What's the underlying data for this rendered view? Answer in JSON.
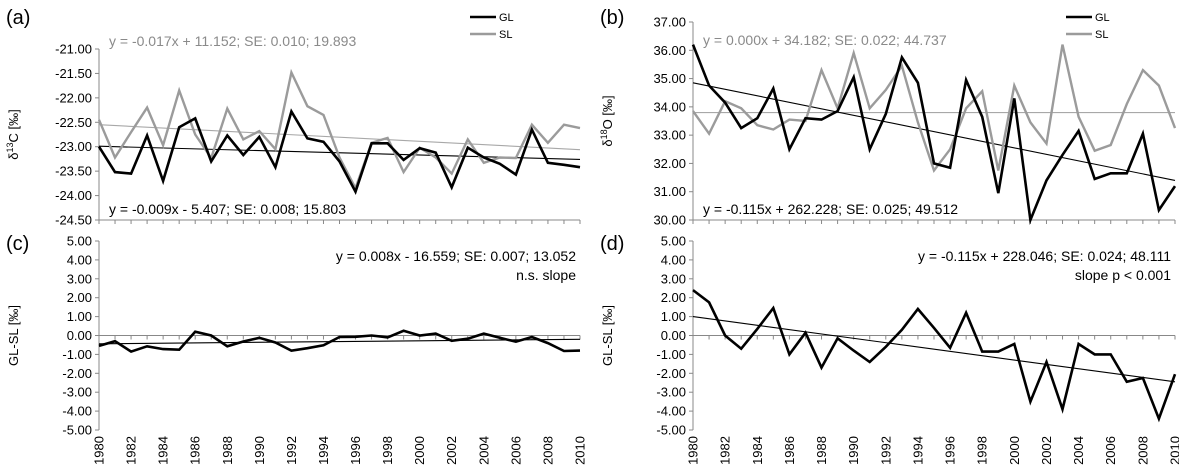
{
  "chart_data": [
    {
      "id": "a",
      "type": "line",
      "panel_label": "(a)",
      "ylabel_base": "δ",
      "ylabel_sup": "13",
      "ylabel_rest": "C [‰]",
      "ylim": [
        -24.5,
        -21.0
      ],
      "yticks": [
        "-21.00",
        "-21.50",
        "-22.00",
        "-22.50",
        "-23.00",
        "-23.50",
        "-24.00",
        "-24.50"
      ],
      "ytick_values": [
        -21.0,
        -21.5,
        -22.0,
        -22.5,
        -23.0,
        -23.5,
        -24.0,
        -24.5
      ],
      "x": [
        1980,
        1981,
        1982,
        1983,
        1984,
        1985,
        1986,
        1987,
        1988,
        1989,
        1990,
        1991,
        1992,
        1993,
        1994,
        1995,
        1996,
        1997,
        1998,
        1999,
        2000,
        2001,
        2002,
        2003,
        2004,
        2005,
        2006,
        2007,
        2008,
        2009,
        2010
      ],
      "xlim": [
        1980,
        2010
      ],
      "xticks": [
        "1980",
        "1982",
        "1984",
        "1986",
        "1988",
        "1990",
        "1992",
        "1994",
        "1996",
        "1998",
        "2000",
        "2002",
        "2004",
        "2006",
        "2008",
        "2010"
      ],
      "grid": false,
      "legend_position": "top-right",
      "series": [
        {
          "name": "GL",
          "color": "#000000",
          "values": [
            -23.0,
            -23.52,
            -23.55,
            -22.77,
            -23.7,
            -22.6,
            -22.42,
            -23.3,
            -22.77,
            -23.17,
            -22.8,
            -23.42,
            -22.28,
            -22.83,
            -22.9,
            -23.3,
            -23.92,
            -22.93,
            -22.93,
            -23.27,
            -23.03,
            -23.12,
            -23.83,
            -23.02,
            -23.22,
            -23.35,
            -23.57,
            -22.65,
            -23.33,
            -23.37,
            -23.42
          ]
        },
        {
          "name": "SL",
          "color": "#9b9b9b",
          "values": [
            -22.45,
            -23.22,
            -22.7,
            -22.2,
            -22.97,
            -21.85,
            -22.75,
            -23.23,
            -22.22,
            -22.85,
            -22.68,
            -23.05,
            -21.48,
            -22.17,
            -22.35,
            -23.22,
            -23.85,
            -22.92,
            -22.82,
            -23.52,
            -23.02,
            -23.22,
            -23.55,
            -22.85,
            -23.33,
            -23.22,
            -23.23,
            -22.55,
            -22.92,
            -22.55,
            -22.62
          ]
        }
      ],
      "trendlines": [
        {
          "series": "SL",
          "color": "#a8a8a8",
          "slope": -0.017,
          "from": -22.55,
          "to": -23.06
        },
        {
          "series": "GL",
          "color": "#000000",
          "slope": -0.009,
          "from": -22.99,
          "to": -23.26
        }
      ],
      "annotations": [
        {
          "text": "y = -0.017x + 11.152; SE: 0.010; 19.893",
          "color": "#8a8a8a",
          "anchor": "top-left"
        },
        {
          "text": "y = -0.009x - 5.407; SE: 0.008; 15.803",
          "color": "#000000",
          "anchor": "bottom-left"
        }
      ]
    },
    {
      "id": "b",
      "type": "line",
      "panel_label": "(b)",
      "ylabel_base": "δ",
      "ylabel_sup": "18",
      "ylabel_rest": "O [‰]",
      "ylim": [
        30.0,
        37.0
      ],
      "yticks": [
        "37.00",
        "36.00",
        "35.00",
        "34.00",
        "33.00",
        "32.00",
        "31.00",
        "30.00"
      ],
      "ytick_values": [
        37.0,
        36.0,
        35.0,
        34.0,
        33.0,
        32.0,
        31.0,
        30.0
      ],
      "x": [
        1980,
        1981,
        1982,
        1983,
        1984,
        1985,
        1986,
        1987,
        1988,
        1989,
        1990,
        1991,
        1992,
        1993,
        1994,
        1995,
        1996,
        1997,
        1998,
        1999,
        2000,
        2001,
        2002,
        2003,
        2004,
        2005,
        2006,
        2007,
        2008,
        2009,
        2010
      ],
      "xlim": [
        1980,
        2010
      ],
      "xticks": [
        "1980",
        "1982",
        "1984",
        "1986",
        "1988",
        "1990",
        "1992",
        "1994",
        "1996",
        "1998",
        "2000",
        "2002",
        "2004",
        "2006",
        "2008",
        "2010"
      ],
      "grid": false,
      "legend_position": "top-right",
      "series": [
        {
          "name": "GL",
          "color": "#000000",
          "values": [
            36.2,
            34.75,
            34.15,
            33.25,
            33.6,
            34.65,
            32.5,
            33.6,
            33.55,
            33.85,
            35.05,
            32.5,
            33.75,
            35.75,
            34.85,
            32.0,
            31.85,
            34.95,
            33.65,
            30.95,
            34.3,
            30.0,
            31.4,
            32.3,
            33.15,
            31.45,
            31.65,
            31.65,
            33.05,
            30.35,
            31.2
          ]
        },
        {
          "name": "SL",
          "color": "#9b9b9b",
          "values": [
            33.85,
            33.05,
            34.2,
            33.95,
            33.35,
            33.2,
            33.55,
            33.5,
            35.3,
            33.95,
            35.9,
            33.95,
            34.6,
            35.45,
            33.45,
            31.75,
            32.5,
            33.95,
            34.55,
            31.75,
            34.75,
            33.45,
            32.7,
            36.2,
            33.65,
            32.45,
            32.65,
            34.1,
            35.3,
            34.75,
            33.25
          ]
        }
      ],
      "trendlines": [
        {
          "series": "SL",
          "color": "#a8a8a8",
          "slope": 0.0,
          "from": 33.8,
          "to": 33.8
        },
        {
          "series": "GL",
          "color": "#000000",
          "slope": -0.115,
          "from": 34.85,
          "to": 31.4
        }
      ],
      "annotations": [
        {
          "text": "y = 0.000x + 34.182; SE: 0.022; 44.737",
          "color": "#8a8a8a",
          "anchor": "top-left"
        },
        {
          "text": "y = -0.115x + 262.228; SE: 0.025; 49.512",
          "color": "#000000",
          "anchor": "bottom-left"
        }
      ]
    },
    {
      "id": "c",
      "type": "line",
      "panel_label": "(c)",
      "ylabel_base": "GL-SL [‰]",
      "ylabel_sup": "",
      "ylabel_rest": "",
      "ylim": [
        -5.0,
        5.0
      ],
      "yticks": [
        "5.00",
        "4.00",
        "3.00",
        "2.00",
        "1.00",
        "0.00",
        "-1.00",
        "-2.00",
        "-3.00",
        "-4.00",
        "-5.00"
      ],
      "ytick_values": [
        5,
        4,
        3,
        2,
        1,
        0,
        -1,
        -2,
        -3,
        -4,
        -5
      ],
      "x": [
        1980,
        1981,
        1982,
        1983,
        1984,
        1985,
        1986,
        1987,
        1988,
        1989,
        1990,
        1991,
        1992,
        1993,
        1994,
        1995,
        1996,
        1997,
        1998,
        1999,
        2000,
        2001,
        2002,
        2003,
        2004,
        2005,
        2006,
        2007,
        2008,
        2009,
        2010
      ],
      "xlim": [
        1980,
        2010
      ],
      "xticks": [
        "1980",
        "1982",
        "1984",
        "1986",
        "1988",
        "1990",
        "1992",
        "1994",
        "1996",
        "1998",
        "2000",
        "2002",
        "2004",
        "2006",
        "2008",
        "2010"
      ],
      "grid": false,
      "series": [
        {
          "name": "GL-SL",
          "color": "#000000",
          "values": [
            -0.55,
            -0.3,
            -0.85,
            -0.57,
            -0.72,
            -0.75,
            0.2,
            0.0,
            -0.57,
            -0.32,
            -0.12,
            -0.37,
            -0.8,
            -0.67,
            -0.52,
            -0.08,
            -0.07,
            0.0,
            -0.1,
            0.25,
            0.0,
            0.1,
            -0.28,
            -0.17,
            0.1,
            -0.12,
            -0.33,
            -0.08,
            -0.4,
            -0.82,
            -0.8
          ]
        }
      ],
      "trendlines": [
        {
          "series": "GL-SL",
          "color": "#000000",
          "slope": 0.008,
          "from": -0.44,
          "to": -0.2
        }
      ],
      "annotations": [
        {
          "text": "y = 0.008x - 16.559; SE: 0.007; 13.052",
          "color": "#000000",
          "anchor": "top-right"
        },
        {
          "text": "n.s. slope",
          "color": "#000000",
          "anchor": "top-right-2"
        }
      ]
    },
    {
      "id": "d",
      "type": "line",
      "panel_label": "(d)",
      "ylabel_base": "GL-SL [‰]",
      "ylabel_sup": "",
      "ylabel_rest": "",
      "ylim": [
        -5.0,
        5.0
      ],
      "yticks": [
        "5.00",
        "4.00",
        "3.00",
        "2.00",
        "1.00",
        "0.00",
        "-1.00",
        "-2.00",
        "-3.00",
        "-4.00",
        "-5.00"
      ],
      "ytick_values": [
        5,
        4,
        3,
        2,
        1,
        0,
        -1,
        -2,
        -3,
        -4,
        -5
      ],
      "x": [
        1980,
        1981,
        1982,
        1983,
        1984,
        1985,
        1986,
        1987,
        1988,
        1989,
        1990,
        1991,
        1992,
        1993,
        1994,
        1995,
        1996,
        1997,
        1998,
        1999,
        2000,
        2001,
        2002,
        2003,
        2004,
        2005,
        2006,
        2007,
        2008,
        2009,
        2010
      ],
      "xlim": [
        1980,
        2010
      ],
      "xticks": [
        "1980",
        "1982",
        "1984",
        "1986",
        "1988",
        "1990",
        "1992",
        "1994",
        "1996",
        "1998",
        "2000",
        "2002",
        "2004",
        "2006",
        "2008",
        "2010"
      ],
      "grid": false,
      "series": [
        {
          "name": "GL-SL",
          "color": "#000000",
          "values": [
            2.4,
            1.75,
            0.0,
            -0.7,
            0.35,
            1.45,
            -1.0,
            0.15,
            -1.7,
            -0.15,
            -0.8,
            -1.4,
            -0.6,
            0.3,
            1.4,
            0.4,
            -0.65,
            1.2,
            -0.85,
            -0.85,
            -0.45,
            -3.5,
            -1.4,
            -3.9,
            -0.45,
            -1.0,
            -1.0,
            -2.45,
            -2.25,
            -4.4,
            -2.05
          ]
        }
      ],
      "trendlines": [
        {
          "series": "GL-SL",
          "color": "#000000",
          "slope": -0.115,
          "from": 1.0,
          "to": -2.45
        }
      ],
      "annotations": [
        {
          "text": "y = -0.115x + 228.046; SE: 0.024; 48.111",
          "color": "#000000",
          "anchor": "top-right"
        },
        {
          "text": "slope p < 0.001",
          "color": "#000000",
          "anchor": "top-right-2"
        }
      ]
    }
  ]
}
